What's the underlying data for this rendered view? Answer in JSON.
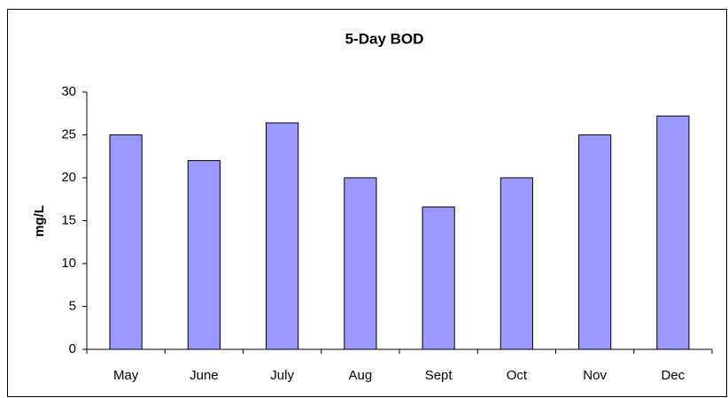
{
  "chart_data": {
    "type": "bar",
    "title": "5-Day BOD",
    "y_label": "mg/L",
    "categories": [
      "May",
      "June",
      "July",
      "Aug",
      "Sept",
      "Oct",
      "Nov",
      "Dec"
    ],
    "values": [
      25,
      22,
      26.4,
      20,
      16.6,
      20,
      25,
      27.2
    ],
    "color": "#9999ff",
    "ylim": [
      0,
      30
    ],
    "yticks": [
      0,
      5,
      10,
      15,
      20,
      25,
      30
    ],
    "grid": false
  }
}
